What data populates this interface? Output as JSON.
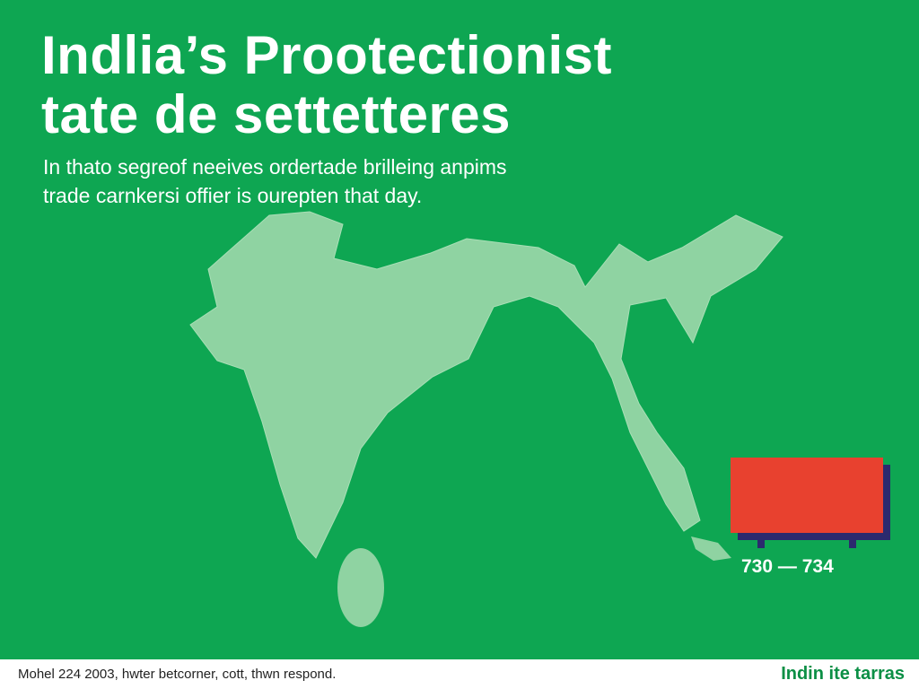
{
  "header": {
    "title_lines": [
      "Indlia’s Prootectionist",
      "tate de settetteres"
    ],
    "subtitle_lines": [
      "In thato segreof neeives ordertade brilleing anpims",
      "trade carnkersi offier is ourepten that day."
    ]
  },
  "map": {
    "label": "730 — 734"
  },
  "footer": {
    "note": "Mohel 224 2003, hwter betcorner, cott, thwn respond.",
    "brand": "Indin ite tarras"
  }
}
